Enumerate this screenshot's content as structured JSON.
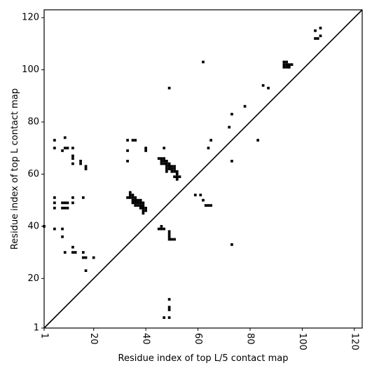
{
  "chart_data": {
    "type": "scatter",
    "xlabel": "Residue index of top L/5 contact map",
    "ylabel": "Residue index of top L contact map",
    "xlim": [
      1,
      123
    ],
    "ylim": [
      1,
      123
    ],
    "xticks": [
      1,
      20,
      40,
      60,
      80,
      100,
      120
    ],
    "xtick_labels": [
      "1",
      "20",
      "40",
      "60",
      "80",
      "100",
      "120"
    ],
    "yticks": [
      1,
      20,
      40,
      60,
      80,
      100,
      120
    ],
    "ytick_labels": [
      "1",
      "20",
      "40",
      "60",
      "80",
      "100",
      "120"
    ],
    "xtick_rotation": -90,
    "diagonal": {
      "from": [
        1,
        1
      ],
      "to": [
        123,
        123
      ]
    },
    "marker": "square",
    "color": "#000000",
    "grid": false,
    "series": [
      {
        "points": [
          [
            1,
            40
          ],
          [
            5,
            73
          ],
          [
            5,
            70
          ],
          [
            5,
            51
          ],
          [
            5,
            49
          ],
          [
            5,
            47
          ],
          [
            5,
            39
          ],
          [
            8,
            69
          ],
          [
            9,
            70
          ],
          [
            10,
            70
          ],
          [
            8,
            49
          ],
          [
            9,
            49
          ],
          [
            10,
            49
          ],
          [
            8,
            47
          ],
          [
            9,
            47
          ],
          [
            10,
            47
          ],
          [
            8,
            39
          ],
          [
            8,
            36
          ],
          [
            9,
            30
          ],
          [
            9,
            74
          ],
          [
            12,
            70
          ],
          [
            12,
            67
          ],
          [
            12,
            66
          ],
          [
            12,
            64
          ],
          [
            12,
            51
          ],
          [
            12,
            49
          ],
          [
            12,
            32
          ],
          [
            12,
            30
          ],
          [
            13,
            30
          ],
          [
            15,
            65
          ],
          [
            15,
            64
          ],
          [
            16,
            51
          ],
          [
            16,
            30
          ],
          [
            16,
            28
          ],
          [
            17,
            28
          ],
          [
            17,
            23
          ],
          [
            17,
            63
          ],
          [
            17,
            62
          ],
          [
            20,
            28
          ],
          [
            33,
            73
          ],
          [
            35,
            73
          ],
          [
            36,
            73
          ],
          [
            33,
            69
          ],
          [
            33,
            65
          ],
          [
            33,
            51
          ],
          [
            34,
            52
          ],
          [
            34,
            53
          ],
          [
            34,
            51
          ],
          [
            35,
            52
          ],
          [
            35,
            51
          ],
          [
            35,
            50
          ],
          [
            35,
            49
          ],
          [
            36,
            51
          ],
          [
            36,
            50
          ],
          [
            36,
            49
          ],
          [
            36,
            48
          ],
          [
            37,
            50
          ],
          [
            37,
            49
          ],
          [
            37,
            48
          ],
          [
            38,
            50
          ],
          [
            38,
            49
          ],
          [
            38,
            48
          ],
          [
            38,
            47
          ],
          [
            39,
            49
          ],
          [
            39,
            48
          ],
          [
            39,
            47
          ],
          [
            39,
            46
          ],
          [
            39,
            45
          ],
          [
            40,
            47
          ],
          [
            40,
            46
          ],
          [
            40,
            70
          ],
          [
            40,
            69
          ],
          [
            45,
            66
          ],
          [
            46,
            66
          ],
          [
            46,
            65
          ],
          [
            46,
            64
          ],
          [
            47,
            66
          ],
          [
            47,
            65
          ],
          [
            47,
            64
          ],
          [
            47,
            70
          ],
          [
            48,
            65
          ],
          [
            48,
            64
          ],
          [
            48,
            63
          ],
          [
            48,
            62
          ],
          [
            48,
            61
          ],
          [
            49,
            64
          ],
          [
            49,
            63
          ],
          [
            49,
            62
          ],
          [
            50,
            63
          ],
          [
            50,
            62
          ],
          [
            50,
            61
          ],
          [
            51,
            63
          ],
          [
            51,
            62
          ],
          [
            51,
            61
          ],
          [
            52,
            61
          ],
          [
            52,
            60
          ],
          [
            52,
            59
          ],
          [
            52,
            58
          ],
          [
            53,
            59
          ],
          [
            51,
            59
          ],
          [
            45,
            39
          ],
          [
            46,
            40
          ],
          [
            46,
            39
          ],
          [
            47,
            39
          ],
          [
            49,
            38
          ],
          [
            49,
            37
          ],
          [
            49,
            36
          ],
          [
            49,
            35
          ],
          [
            50,
            35
          ],
          [
            51,
            35
          ],
          [
            49,
            93
          ],
          [
            49,
            12
          ],
          [
            49,
            9
          ],
          [
            49,
            8
          ],
          [
            47,
            5
          ],
          [
            49,
            5
          ],
          [
            59,
            52
          ],
          [
            61,
            52
          ],
          [
            62,
            50
          ],
          [
            63,
            48
          ],
          [
            64,
            48
          ],
          [
            65,
            48
          ],
          [
            62,
            103
          ],
          [
            64,
            70
          ],
          [
            65,
            73
          ],
          [
            72,
            78
          ],
          [
            73,
            83
          ],
          [
            73,
            65
          ],
          [
            73,
            33
          ],
          [
            78,
            86
          ],
          [
            83,
            73
          ],
          [
            85,
            94
          ],
          [
            87,
            93
          ],
          [
            93,
            103
          ],
          [
            94,
            103
          ],
          [
            93,
            102
          ],
          [
            94,
            102
          ],
          [
            95,
            102
          ],
          [
            96,
            102
          ],
          [
            93,
            101
          ],
          [
            94,
            101
          ],
          [
            95,
            101
          ],
          [
            105,
            115
          ],
          [
            105,
            112
          ],
          [
            106,
            112
          ],
          [
            107,
            113
          ],
          [
            107,
            116
          ]
        ]
      }
    ]
  }
}
